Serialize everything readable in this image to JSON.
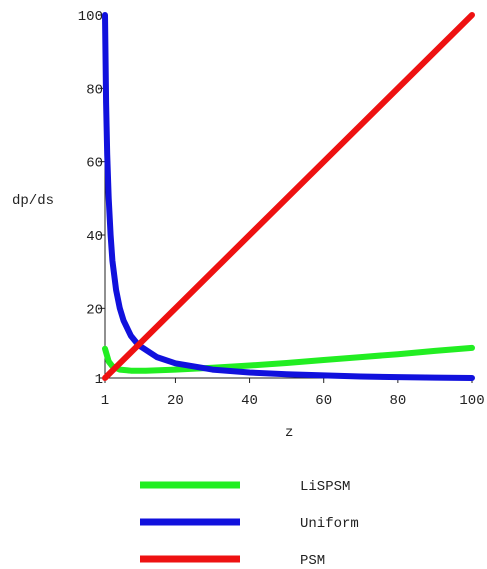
{
  "chart_data": {
    "type": "line",
    "title": "",
    "xlabel": "z",
    "ylabel": "dp/ds",
    "xlim": [
      1,
      100
    ],
    "ylim": [
      1,
      100
    ],
    "grid": false,
    "legend_position": "bottom",
    "x_ticks": [
      1,
      20,
      40,
      60,
      80,
      100
    ],
    "x_tick_labels": [
      "1",
      "20",
      "40",
      "60",
      "80",
      "100"
    ],
    "y_ticks": [
      1,
      20,
      40,
      60,
      80,
      100
    ],
    "y_tick_labels": [
      "1",
      "20",
      "40",
      "60",
      "80",
      "100"
    ],
    "series": [
      {
        "name": "LiSPSM",
        "color": "#22ee22",
        "x": [
          1,
          2,
          3,
          5,
          8,
          12,
          20,
          30,
          40,
          50,
          60,
          70,
          80,
          90,
          100
        ],
        "y": [
          9,
          5.5,
          4.2,
          3.3,
          3,
          3,
          3.3,
          3.8,
          4.4,
          5.1,
          5.9,
          6.7,
          7.5,
          8.4,
          9.2
        ]
      },
      {
        "name": "Uniform",
        "color": "#1111dd",
        "x": [
          1,
          1.3,
          1.6,
          2,
          2.5,
          3,
          4,
          5,
          6,
          8,
          10,
          15,
          20,
          30,
          40,
          50,
          60,
          70,
          80,
          90,
          100
        ],
        "y": [
          100,
          76,
          62,
          50,
          40,
          33,
          25,
          20,
          16.7,
          12.5,
          10,
          6.7,
          5,
          3.3,
          2.5,
          2,
          1.7,
          1.4,
          1.25,
          1.1,
          1
        ]
      },
      {
        "name": "PSM",
        "color": "#ee1111",
        "x": [
          1,
          100
        ],
        "y": [
          1,
          100
        ]
      }
    ]
  }
}
